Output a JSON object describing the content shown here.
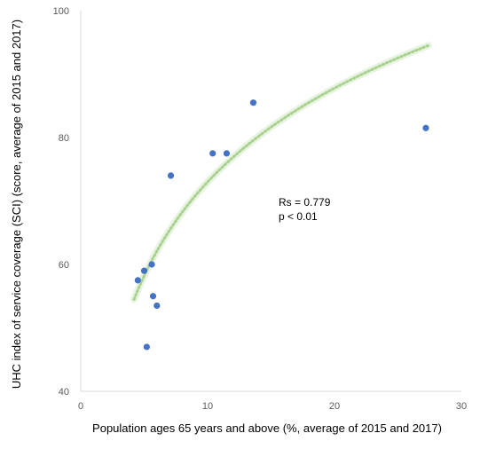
{
  "chart_data": {
    "type": "scatter",
    "xlabel": "Population ages 65 years and above (%, average of 2015 and 2017)",
    "ylabel": "UHC index of service coverage (SCI) (score, average of 2015 and 2017)",
    "xlim": [
      0,
      30
    ],
    "ylim": [
      40,
      100
    ],
    "xticks": [
      0,
      10,
      20,
      30
    ],
    "yticks": [
      40,
      60,
      80,
      100
    ],
    "grid": false,
    "points": [
      {
        "x": 4.5,
        "y": 57.5
      },
      {
        "x": 5.0,
        "y": 59.0
      },
      {
        "x": 5.6,
        "y": 60.0
      },
      {
        "x": 5.7,
        "y": 55.0
      },
      {
        "x": 6.0,
        "y": 53.5
      },
      {
        "x": 5.2,
        "y": 47.0
      },
      {
        "x": 7.1,
        "y": 74.0
      },
      {
        "x": 10.4,
        "y": 77.5
      },
      {
        "x": 11.5,
        "y": 77.5
      },
      {
        "x": 13.6,
        "y": 85.5
      },
      {
        "x": 27.2,
        "y": 81.5
      }
    ],
    "trendline": {
      "type": "logarithmic",
      "x_start": 4.2,
      "x_end": 27.4,
      "y_at_start": 54.5,
      "y_at_end": 94.5
    },
    "annotations": [
      "Rs = 0.779",
      "p < 0.01"
    ],
    "marker_color": "#4472c4",
    "trend_color": "#a9d18e"
  }
}
